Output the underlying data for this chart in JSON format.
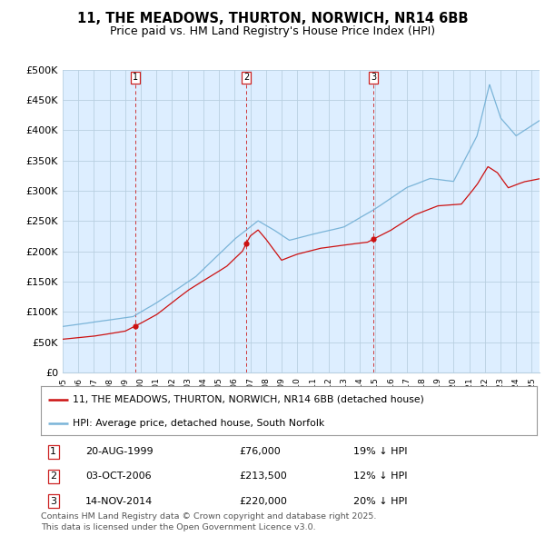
{
  "title": "11, THE MEADOWS, THURTON, NORWICH, NR14 6BB",
  "subtitle": "Price paid vs. HM Land Registry's House Price Index (HPI)",
  "ylim": [
    0,
    500000
  ],
  "yticks": [
    0,
    50000,
    100000,
    150000,
    200000,
    250000,
    300000,
    350000,
    400000,
    450000,
    500000
  ],
  "ytick_labels": [
    "£0",
    "£50K",
    "£100K",
    "£150K",
    "£200K",
    "£250K",
    "£300K",
    "£350K",
    "£400K",
    "£450K",
    "£500K"
  ],
  "xlim_start": 1995.0,
  "xlim_end": 2025.5,
  "hpi_color": "#7ab4d8",
  "price_color": "#cc1111",
  "sale_line_color": "#cc2222",
  "chart_bg_color": "#ddeeff",
  "background_color": "#ffffff",
  "grid_color": "#b8cfe0",
  "sales": [
    {
      "date_num": 1999.635,
      "price": 76000,
      "label": "1",
      "date_str": "20-AUG-1999",
      "price_str": "£76,000",
      "pct_str": "19% ↓ HPI"
    },
    {
      "date_num": 2006.748,
      "price": 213500,
      "label": "2",
      "date_str": "03-OCT-2006",
      "price_str": "£213,500",
      "pct_str": "12% ↓ HPI"
    },
    {
      "date_num": 2014.869,
      "price": 220000,
      "label": "3",
      "date_str": "14-NOV-2014",
      "price_str": "£220,000",
      "pct_str": "20% ↓ HPI"
    }
  ],
  "legend_label_red": "11, THE MEADOWS, THURTON, NORWICH, NR14 6BB (detached house)",
  "legend_label_blue": "HPI: Average price, detached house, South Norfolk",
  "footnote": "Contains HM Land Registry data © Crown copyright and database right 2025.\nThis data is licensed under the Open Government Licence v3.0.",
  "title_fontsize": 10.5,
  "subtitle_fontsize": 9,
  "axis_fontsize": 8,
  "legend_fontsize": 7.8,
  "table_fontsize": 8,
  "footnote_fontsize": 6.8
}
